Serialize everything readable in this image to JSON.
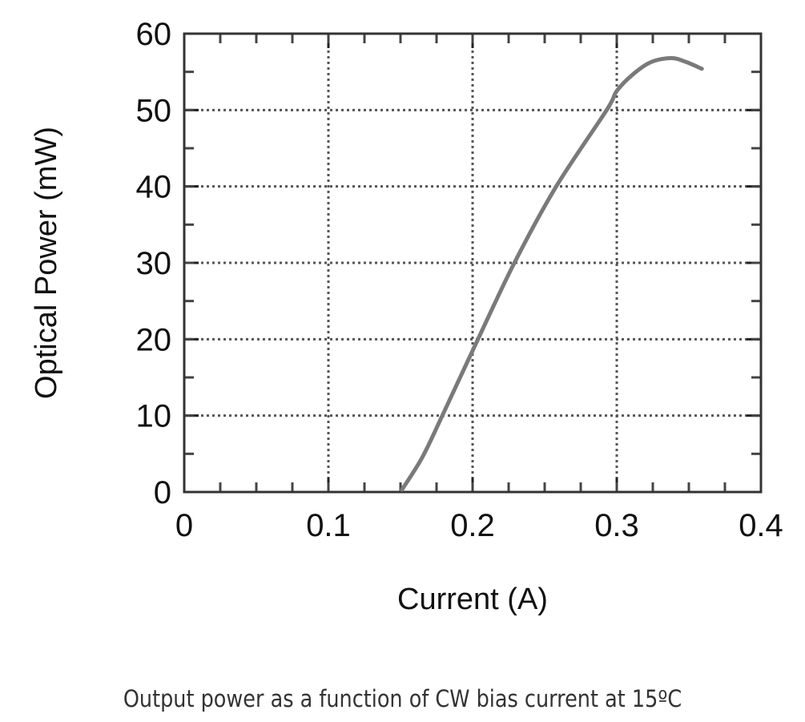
{
  "chart_data": {
    "type": "line",
    "title": "",
    "xlabel": "Current (A)",
    "ylabel": "Optical Power (mW)",
    "xlim": [
      0,
      0.4
    ],
    "ylim": [
      0,
      60
    ],
    "xticks": [
      "0",
      "0.1",
      "0.2",
      "0.3",
      "0.4"
    ],
    "yticks": [
      "0",
      "10",
      "20",
      "30",
      "40",
      "50",
      "60"
    ],
    "x_minor_step": 0.025,
    "y_minor_step": 5,
    "grid": true,
    "grid_style": "dotted",
    "series": [
      {
        "color": "#7a7a7a",
        "x": [
          0.151,
          0.165,
          0.179,
          0.203,
          0.229,
          0.258,
          0.293,
          0.3,
          0.312,
          0.324,
          0.338,
          0.348,
          0.359
        ],
        "y": [
          0.3,
          4.5,
          10,
          19.7,
          30,
          40,
          50,
          52.5,
          54.8,
          56.3,
          56.8,
          56.3,
          55.4
        ]
      }
    ]
  },
  "caption": "Output power as a function of CW bias current at 15ºC"
}
